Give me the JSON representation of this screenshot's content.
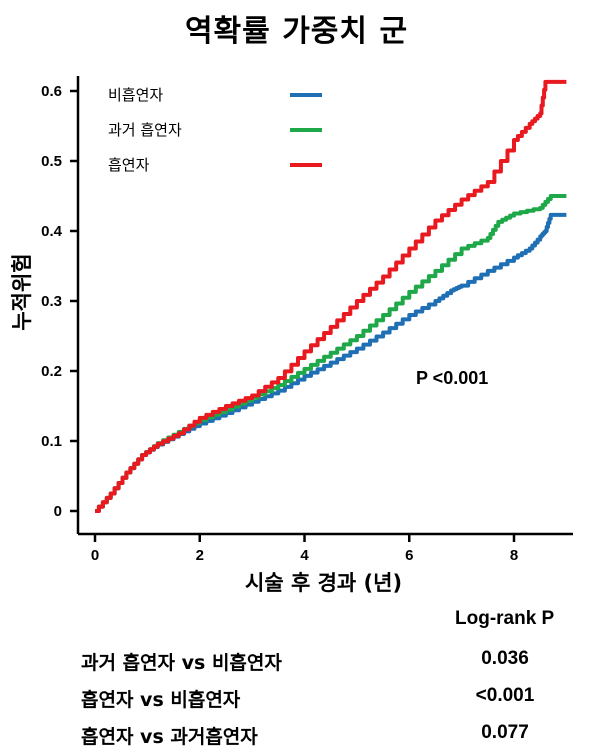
{
  "chart_data": {
    "type": "line",
    "title": "역확률 가중치 군",
    "xlabel": "시술 후 경과 (년)",
    "ylabel": "누적위험",
    "xlim": [
      0,
      9
    ],
    "ylim": [
      0,
      0.62
    ],
    "x_ticks": [
      "0",
      "2",
      "4",
      "6",
      "8"
    ],
    "y_ticks": [
      "0",
      "0.1",
      "0.2",
      "0.3",
      "0.4",
      "0.5",
      "0.6"
    ],
    "legend_placement": "top-left",
    "grid": false,
    "annotation": "P <0.001",
    "series": [
      {
        "name": "비흡연자",
        "color": "#1f6fb5",
        "points": [
          [
            0,
            0
          ],
          [
            0.3,
            0.025
          ],
          [
            0.6,
            0.055
          ],
          [
            0.9,
            0.08
          ],
          [
            1.2,
            0.095
          ],
          [
            1.6,
            0.11
          ],
          [
            2.0,
            0.125
          ],
          [
            2.5,
            0.14
          ],
          [
            3.0,
            0.156
          ],
          [
            3.5,
            0.172
          ],
          [
            4.0,
            0.193
          ],
          [
            4.5,
            0.212
          ],
          [
            5.0,
            0.232
          ],
          [
            5.5,
            0.255
          ],
          [
            6.0,
            0.28
          ],
          [
            6.5,
            0.3
          ],
          [
            6.8,
            0.315
          ],
          [
            7.0,
            0.322
          ],
          [
            7.5,
            0.343
          ],
          [
            8.0,
            0.362
          ],
          [
            8.3,
            0.375
          ],
          [
            8.5,
            0.392
          ],
          [
            8.6,
            0.4
          ],
          [
            8.7,
            0.423
          ],
          [
            9.0,
            0.423
          ]
        ]
      },
      {
        "name": "과거 흡연자",
        "color": "#1fa84a",
        "points": [
          [
            0,
            0
          ],
          [
            0.3,
            0.025
          ],
          [
            0.6,
            0.055
          ],
          [
            0.9,
            0.08
          ],
          [
            1.2,
            0.097
          ],
          [
            1.6,
            0.113
          ],
          [
            2.0,
            0.13
          ],
          [
            2.5,
            0.145
          ],
          [
            3.0,
            0.162
          ],
          [
            3.5,
            0.18
          ],
          [
            4.0,
            0.203
          ],
          [
            4.5,
            0.226
          ],
          [
            5.0,
            0.25
          ],
          [
            5.5,
            0.28
          ],
          [
            6.0,
            0.313
          ],
          [
            6.5,
            0.343
          ],
          [
            7.0,
            0.375
          ],
          [
            7.5,
            0.39
          ],
          [
            7.7,
            0.413
          ],
          [
            8.0,
            0.425
          ],
          [
            8.5,
            0.433
          ],
          [
            8.7,
            0.45
          ],
          [
            9.0,
            0.45
          ]
        ]
      },
      {
        "name": "흡연자",
        "color": "#e8191f",
        "points": [
          [
            0,
            0
          ],
          [
            0.3,
            0.025
          ],
          [
            0.6,
            0.055
          ],
          [
            0.9,
            0.08
          ],
          [
            1.2,
            0.096
          ],
          [
            1.6,
            0.111
          ],
          [
            2.0,
            0.133
          ],
          [
            2.5,
            0.15
          ],
          [
            3.0,
            0.165
          ],
          [
            3.5,
            0.19
          ],
          [
            4.0,
            0.228
          ],
          [
            4.5,
            0.263
          ],
          [
            5.0,
            0.3
          ],
          [
            5.5,
            0.335
          ],
          [
            6.0,
            0.375
          ],
          [
            6.5,
            0.415
          ],
          [
            7.0,
            0.445
          ],
          [
            7.5,
            0.47
          ],
          [
            8.0,
            0.53
          ],
          [
            8.3,
            0.553
          ],
          [
            8.5,
            0.568
          ],
          [
            8.6,
            0.613
          ],
          [
            9.0,
            0.613
          ]
        ]
      }
    ]
  },
  "log_rank_table": {
    "header": "Log-rank P",
    "rows": [
      {
        "comparison": "과거 흡연자 vs 비흡연자",
        "p": "0.036"
      },
      {
        "comparison": "흡연자 vs 비흡연자",
        "p": "<0.001"
      },
      {
        "comparison": "흡연자 vs 과거흡연자",
        "p": "0.077"
      }
    ]
  }
}
